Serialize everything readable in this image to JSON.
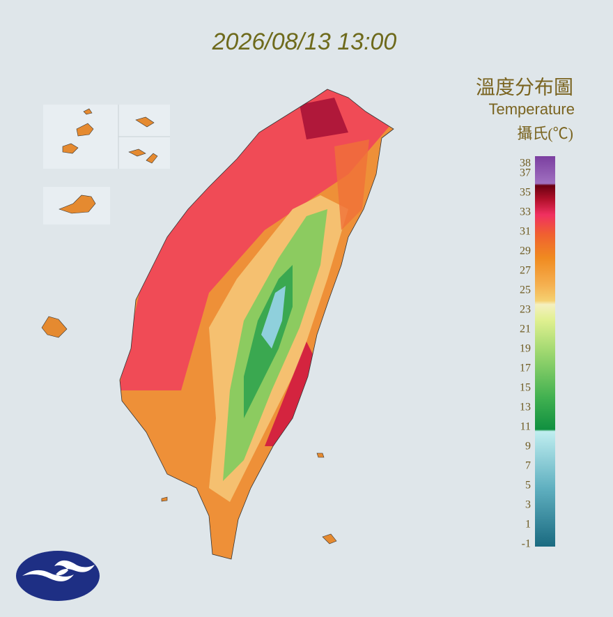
{
  "title": "2026/08/13 13:00",
  "legend": {
    "title": "溫度分布圖",
    "subtitle": "Temperature",
    "unit": "攝氏(℃)",
    "ticks": [
      38,
      37,
      35,
      33,
      31,
      29,
      27,
      25,
      23,
      21,
      19,
      17,
      15,
      13,
      11,
      9,
      7,
      5,
      3,
      1,
      -1
    ]
  }
}
